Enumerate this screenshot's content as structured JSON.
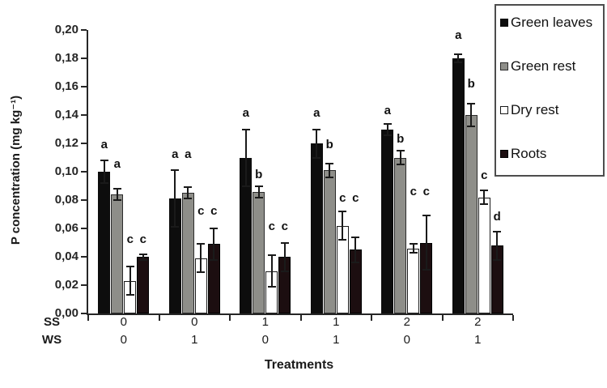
{
  "chart_data": {
    "type": "bar",
    "title": "",
    "xlabel": "Treatments",
    "ylabel": "P concentration (mg kg⁻¹)",
    "ylim": [
      0,
      0.2
    ],
    "ytick_step": 0.02,
    "decimal_style": "comma",
    "grid": false,
    "legend_position": "outside-top-right",
    "ytick_labels": [
      "0,00",
      "0,02",
      "0,04",
      "0,06",
      "0,08",
      "0,10",
      "0,12",
      "0,14",
      "0,16",
      "0,18",
      "0,20"
    ],
    "categories": [
      "SS0 WS0",
      "SS0 WS1",
      "SS1 WS0",
      "SS1 WS1",
      "SS2 WS0",
      "SS2 WS1"
    ],
    "group_axis_rows": [
      {
        "label": "SS",
        "values": [
          "0",
          "0",
          "1",
          "1",
          "2",
          "2"
        ]
      },
      {
        "label": "WS",
        "values": [
          "0",
          "1",
          "0",
          "1",
          "0",
          "1"
        ]
      }
    ],
    "series": [
      {
        "name": "Green leaves",
        "color": "#0d0d0d",
        "outline": "#0d0d0d",
        "values": [
          0.1,
          0.081,
          0.11,
          0.12,
          0.13,
          0.18
        ],
        "errors": [
          0.008,
          0.02,
          0.02,
          0.01,
          0.004,
          0.003
        ],
        "letters": [
          "a",
          "a",
          "a",
          "a",
          "a",
          "a"
        ],
        "letter_y": [
          0.115,
          0.108,
          0.137,
          0.137,
          0.139,
          0.192
        ]
      },
      {
        "name": "Green rest",
        "color": "#8e8e89",
        "outline": "#2b2b2b",
        "values": [
          0.084,
          0.085,
          0.086,
          0.101,
          0.11,
          0.14
        ],
        "errors": [
          0.004,
          0.004,
          0.004,
          0.005,
          0.005,
          0.008
        ],
        "letters": [
          "a",
          "a",
          "b",
          "b",
          "b",
          "b"
        ],
        "letter_y": [
          0.101,
          0.108,
          0.094,
          0.115,
          0.119,
          0.158
        ]
      },
      {
        "name": "Dry rest",
        "color": "#ffffff",
        "outline": "#1a1a1a",
        "values": [
          0.023,
          0.039,
          0.03,
          0.062,
          0.046,
          0.082
        ],
        "errors": [
          0.01,
          0.01,
          0.011,
          0.01,
          0.003,
          0.005
        ],
        "letters": [
          "c",
          "c",
          "c",
          "c",
          "c",
          "c"
        ],
        "letter_y": [
          0.048,
          0.068,
          0.057,
          0.077,
          0.082,
          0.093
        ]
      },
      {
        "name": "Roots",
        "color": "#1c0e10",
        "outline": "#000000",
        "values": [
          0.04,
          0.049,
          0.04,
          0.045,
          0.05,
          0.048
        ],
        "errors": [
          0.002,
          0.011,
          0.01,
          0.009,
          0.019,
          0.01
        ],
        "letters": [
          "c",
          "c",
          "c",
          "c",
          "c",
          "d"
        ],
        "letter_y": [
          0.048,
          0.068,
          0.057,
          0.077,
          0.082,
          0.064
        ]
      }
    ]
  }
}
